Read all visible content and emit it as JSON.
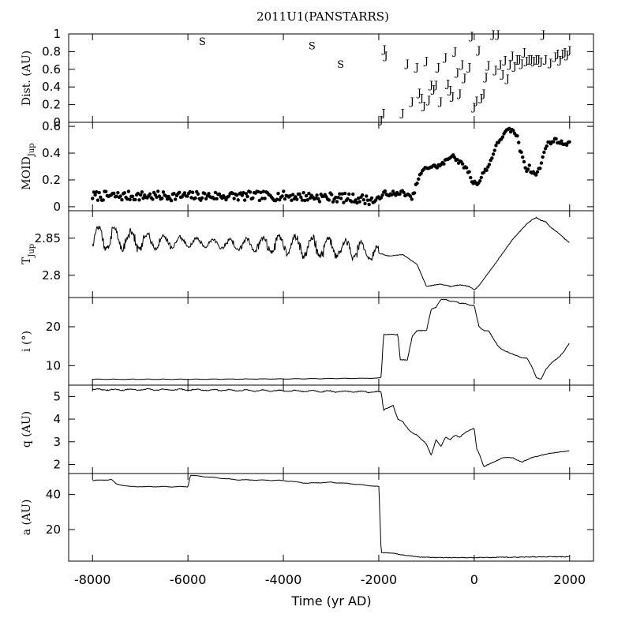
{
  "chart_data": {
    "type": "line",
    "title": "2011U1(PANSTARRS)",
    "xlabel": "Time (yr AD)",
    "xlim": [
      -8500,
      2500
    ],
    "xticks": [
      -8000,
      -6000,
      -4000,
      -2000,
      0,
      2000
    ],
    "xtick_labels": [
      "-8000",
      "-6000",
      "-4000",
      "-2000",
      "0",
      "2000"
    ],
    "panels": [
      {
        "id": "dist",
        "type": "scatter-text",
        "ylabel": "Dist. (AU)",
        "ylim": [
          0,
          1
        ],
        "yticks": [
          0,
          0.2,
          0.4,
          0.6,
          0.8,
          1
        ],
        "ytick_labels": [
          "0",
          "0.2",
          "0.4",
          "0.6",
          "0.8",
          "1"
        ],
        "saturn": {
          "name": "S",
          "points": [
            [
              -5700,
              0.92
            ],
            [
              -3400,
              0.87
            ],
            [
              -2800,
              0.66
            ]
          ]
        },
        "jupiter": {
          "name": "J",
          "points": [
            [
              -1950,
              0.03
            ],
            [
              -1900,
              0.11
            ],
            [
              -1880,
              0.83
            ],
            [
              -1850,
              0.76
            ],
            [
              -1500,
              0.11
            ],
            [
              -1400,
              0.67
            ],
            [
              -1300,
              0.24
            ],
            [
              -1200,
              0.63
            ],
            [
              -1150,
              0.34
            ],
            [
              -1100,
              0.28
            ],
            [
              -1050,
              0.19
            ],
            [
              -1000,
              0.7
            ],
            [
              -950,
              0.26
            ],
            [
              -900,
              0.43
            ],
            [
              -850,
              0.38
            ],
            [
              -800,
              0.43
            ],
            [
              -750,
              0.63
            ],
            [
              -700,
              0.24
            ],
            [
              -600,
              0.74
            ],
            [
              -550,
              0.44
            ],
            [
              -500,
              0.37
            ],
            [
              -450,
              0.3
            ],
            [
              -400,
              0.81
            ],
            [
              -350,
              0.57
            ],
            [
              -300,
              0.33
            ],
            [
              -250,
              0.66
            ],
            [
              -200,
              0.51
            ],
            [
              -100,
              0.63
            ],
            [
              -50,
              0.98
            ],
            [
              0,
              0.18
            ],
            [
              50,
              0.25
            ],
            [
              100,
              0.82
            ],
            [
              150,
              0.28
            ],
            [
              200,
              0.33
            ],
            [
              250,
              0.52
            ],
            [
              300,
              0.65
            ],
            [
              400,
              1.0
            ],
            [
              450,
              0.6
            ],
            [
              500,
              1.0
            ],
            [
              550,
              0.66
            ],
            [
              600,
              0.55
            ],
            [
              650,
              0.71
            ],
            [
              700,
              0.5
            ],
            [
              750,
              0.66
            ],
            [
              800,
              0.76
            ],
            [
              850,
              0.64
            ],
            [
              900,
              0.72
            ],
            [
              950,
              0.72
            ],
            [
              1000,
              0.67
            ],
            [
              1050,
              0.8
            ],
            [
              1100,
              0.7
            ],
            [
              1150,
              0.72
            ],
            [
              1200,
              0.72
            ],
            [
              1250,
              0.7
            ],
            [
              1300,
              0.72
            ],
            [
              1350,
              0.72
            ],
            [
              1400,
              0.69
            ],
            [
              1450,
              1.0
            ],
            [
              1500,
              0.72
            ],
            [
              1600,
              0.68
            ],
            [
              1700,
              0.75
            ],
            [
              1750,
              0.78
            ],
            [
              1800,
              0.71
            ],
            [
              1850,
              0.78
            ],
            [
              1900,
              0.8
            ],
            [
              1950,
              0.77
            ],
            [
              2000,
              0.82
            ]
          ]
        }
      },
      {
        "id": "moid",
        "type": "scatter",
        "ylabel": "MOID",
        "ylabel_sub": "Jup",
        "ylim": [
          -0.03,
          0.63
        ],
        "yticks": [
          0,
          0.2,
          0.4,
          0.6
        ],
        "ytick_labels": [
          "0",
          "0.2",
          "0.4",
          "0.6"
        ],
        "x": [
          -8000,
          -7000,
          -6000,
          -5000,
          -4000,
          -3000,
          -2400,
          -2000,
          -1900,
          -1800,
          -1700,
          -1600,
          -1500,
          -1300,
          -1200,
          -1100,
          -1000,
          -900,
          -800,
          -700,
          -600,
          -500,
          -450,
          -400,
          -300,
          -200,
          -100,
          -50,
          0,
          100,
          200,
          300,
          400,
          500,
          600,
          700,
          800,
          900,
          950,
          1000,
          1050,
          1100,
          1150,
          1200,
          1300,
          1400,
          1500,
          1600,
          1700,
          1800,
          1900,
          2000
        ],
        "y": [
          0.08,
          0.08,
          0.08,
          0.08,
          0.08,
          0.07,
          0.06,
          0.04,
          0.12,
          0.07,
          0.11,
          0.09,
          0.11,
          0.06,
          0.18,
          0.26,
          0.29,
          0.3,
          0.3,
          0.31,
          0.34,
          0.37,
          0.4,
          0.36,
          0.33,
          0.3,
          0.25,
          0.19,
          0.18,
          0.18,
          0.26,
          0.3,
          0.4,
          0.48,
          0.53,
          0.57,
          0.57,
          0.53,
          0.43,
          0.4,
          0.33,
          0.27,
          0.3,
          0.26,
          0.24,
          0.31,
          0.46,
          0.48,
          0.5,
          0.48,
          0.47,
          0.48
        ]
      },
      {
        "id": "tjup",
        "type": "line",
        "ylabel": "T",
        "ylabel_sub": "Jup",
        "ylim": [
          2.77,
          2.887
        ],
        "yticks": [
          2.8,
          2.85
        ],
        "ytick_labels": [
          "2.8",
          "2.85"
        ],
        "x": [
          -8000,
          -7000,
          -6000,
          -5000,
          -4000,
          -3000,
          -2000,
          -1800,
          -1500,
          -1200,
          -1000,
          -900,
          -700,
          -500,
          -300,
          -100,
          0,
          100,
          200,
          400,
          600,
          800,
          1000,
          1100,
          1200,
          1300,
          1400,
          1500,
          1600,
          1700,
          1800,
          1900,
          2000
        ],
        "y": [
          2.85,
          2.846,
          2.844,
          2.842,
          2.84,
          2.838,
          2.83,
          2.826,
          2.828,
          2.815,
          2.785,
          2.786,
          2.788,
          2.785,
          2.787,
          2.785,
          2.78,
          2.786,
          2.795,
          2.812,
          2.83,
          2.848,
          2.862,
          2.869,
          2.874,
          2.878,
          2.874,
          2.872,
          2.865,
          2.86,
          2.855,
          2.849,
          2.844
        ]
      },
      {
        "id": "incl",
        "type": "line",
        "ylabel": "i (°)",
        "ylim": [
          5,
          27.5
        ],
        "yticks": [
          10,
          20
        ],
        "ytick_labels": [
          "10",
          "20"
        ],
        "x": [
          -8000,
          -6000,
          -4000,
          -2000,
          -1950,
          -1900,
          -1700,
          -1600,
          -1550,
          -1400,
          -1300,
          -1200,
          -1100,
          -1000,
          -900,
          -800,
          -700,
          -600,
          -500,
          -400,
          -300,
          -200,
          -100,
          0,
          100,
          200,
          300,
          400,
          500,
          600,
          700,
          800,
          900,
          1000,
          1100,
          1200,
          1300,
          1400,
          1500,
          1600,
          1700,
          1800,
          1900,
          2000
        ],
        "y": [
          6.5,
          6.5,
          6.6,
          6.8,
          7.0,
          18.0,
          18.0,
          18.0,
          11.5,
          11.5,
          17.5,
          19.0,
          19.0,
          19.0,
          24.5,
          25.0,
          27.0,
          27.0,
          26.5,
          26.5,
          26.0,
          26.0,
          25.5,
          25.5,
          20.0,
          19.0,
          19.0,
          17.0,
          15.0,
          14.0,
          13.5,
          13.0,
          12.5,
          12.0,
          12.0,
          10.0,
          7.0,
          6.5,
          9.0,
          10.5,
          11.5,
          12.5,
          14.0,
          16.0
        ]
      },
      {
        "id": "q",
        "type": "line",
        "ylabel": "q (AU)",
        "ylim": [
          1.6,
          5.5
        ],
        "yticks": [
          2,
          3,
          4,
          5
        ],
        "ytick_labels": [
          "2",
          "3",
          "4",
          "5"
        ],
        "x": [
          -8000,
          -6000,
          -4000,
          -2000,
          -1950,
          -1900,
          -1800,
          -1700,
          -1600,
          -1500,
          -1400,
          -1300,
          -1200,
          -1100,
          -1000,
          -900,
          -800,
          -700,
          -600,
          -500,
          -400,
          -300,
          -200,
          -100,
          0,
          50,
          100,
          200,
          300,
          400,
          600,
          800,
          1000,
          1200,
          1400,
          1600,
          1800,
          2000
        ],
        "y": [
          5.3,
          5.3,
          5.25,
          5.2,
          5.2,
          4.4,
          4.5,
          4.6,
          4.0,
          3.9,
          3.6,
          3.4,
          3.3,
          3.1,
          2.9,
          2.4,
          3.1,
          2.8,
          3.2,
          3.1,
          3.3,
          3.2,
          3.4,
          3.5,
          3.6,
          2.7,
          2.5,
          1.9,
          2.0,
          2.1,
          2.3,
          2.3,
          2.1,
          2.3,
          2.4,
          2.5,
          2.55,
          2.6
        ]
      },
      {
        "id": "a",
        "type": "line",
        "ylabel": "a (AU)",
        "ylim": [
          2,
          52
        ],
        "yticks": [
          20,
          40
        ],
        "ytick_labels": [
          "20",
          "40"
        ],
        "x": [
          -8000,
          -7600,
          -7500,
          -7200,
          -6000,
          -5950,
          -5000,
          -4000,
          -3500,
          -3000,
          -2500,
          -2000,
          -1950,
          -1700,
          -1500,
          -1200,
          -1000,
          -800,
          -500,
          0,
          500,
          1000,
          1500,
          2000
        ],
        "y": [
          48,
          48.5,
          46,
          44.5,
          44.5,
          51,
          48.5,
          48,
          46.5,
          47,
          46,
          44.5,
          7,
          6.5,
          5.5,
          4.5,
          4.2,
          4.0,
          4.0,
          4.0,
          4.2,
          4.3,
          4.5,
          4.5
        ]
      }
    ]
  }
}
